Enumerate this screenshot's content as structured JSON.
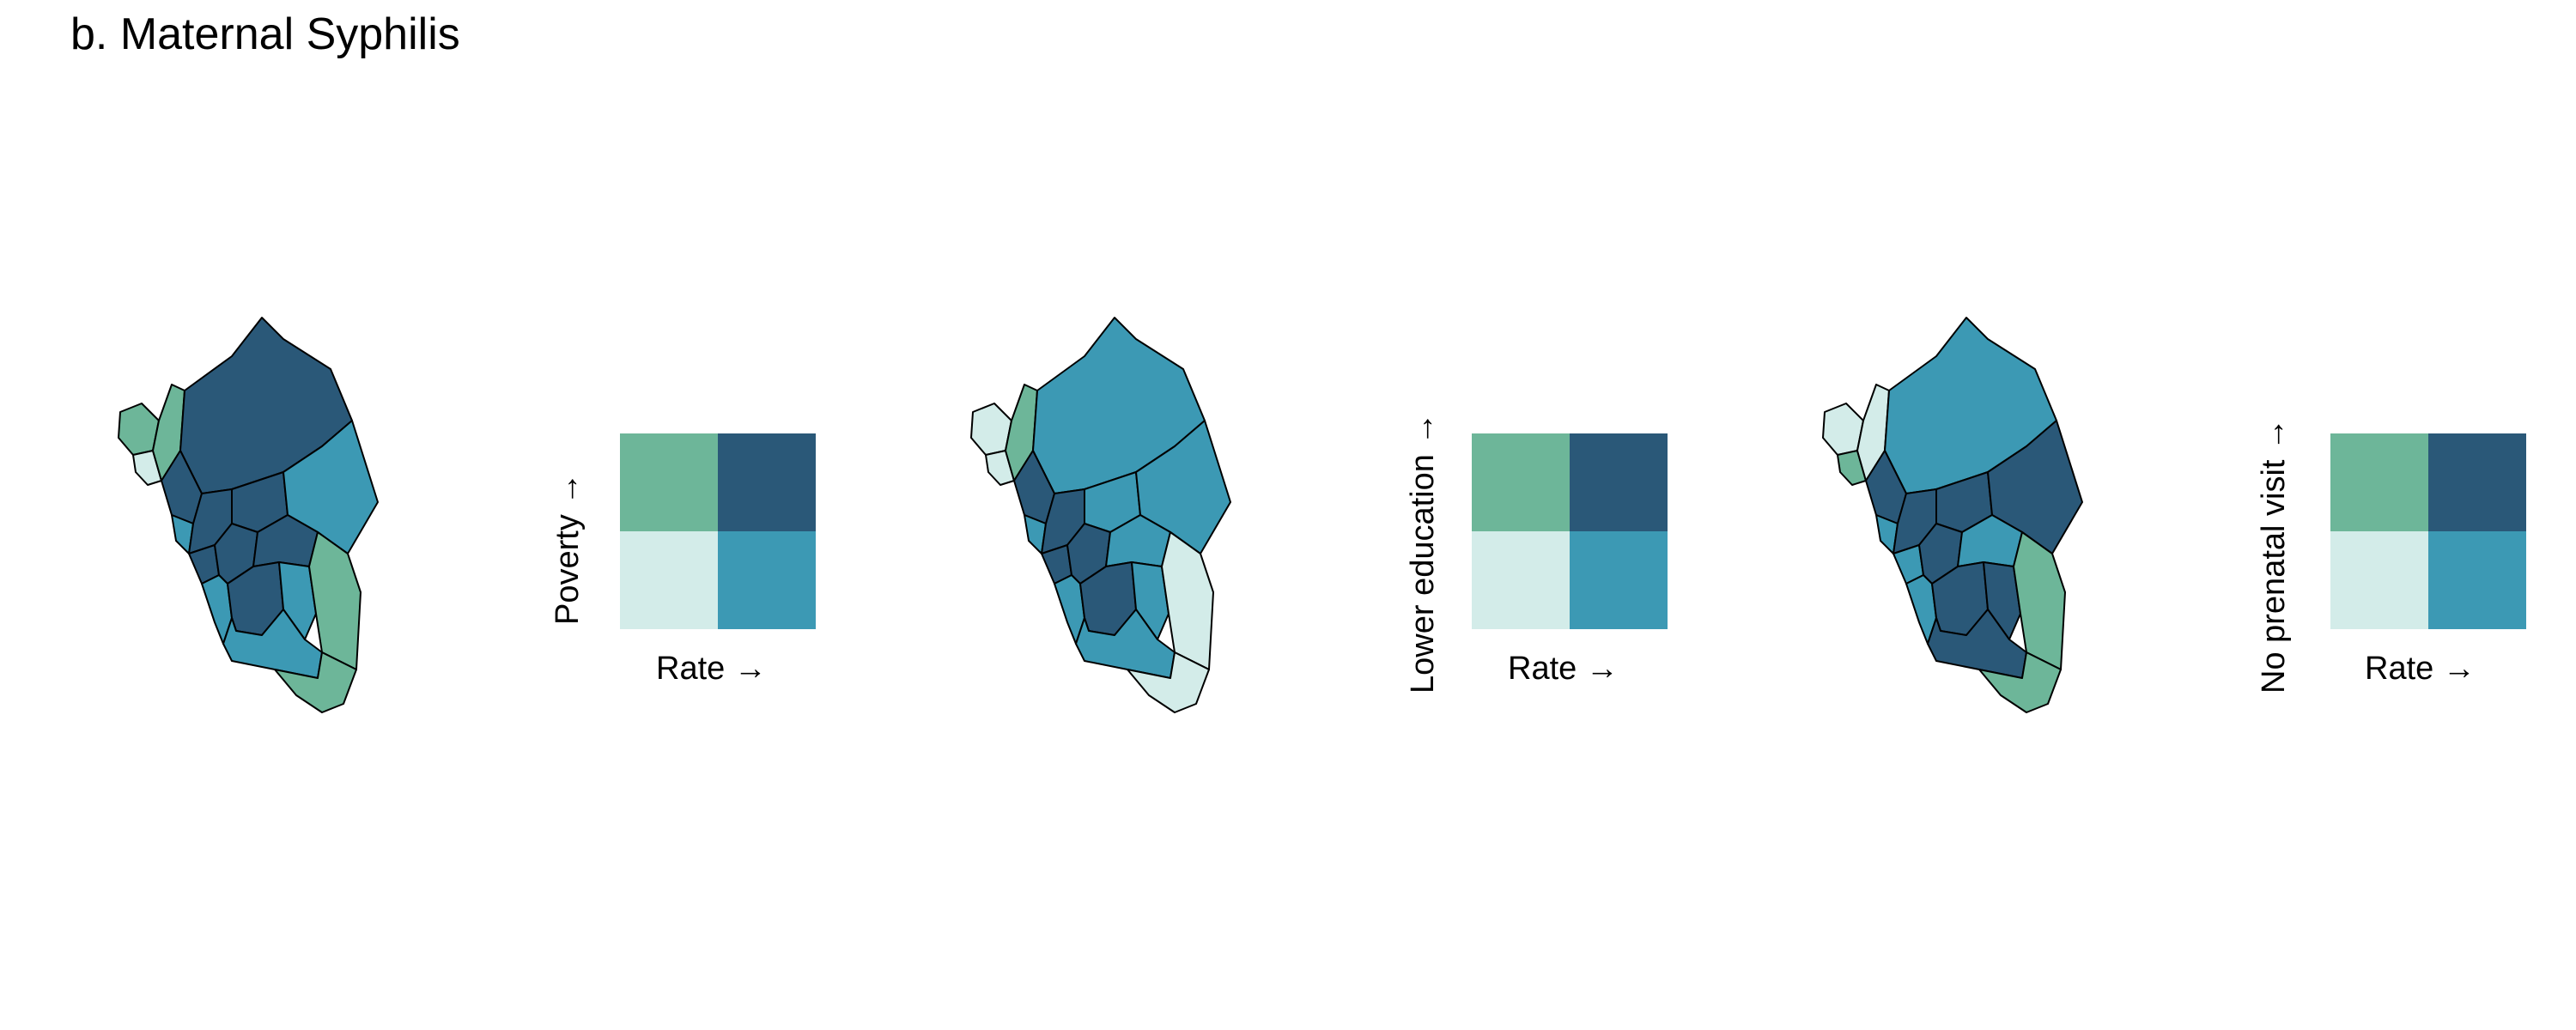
{
  "title": "b. Maternal Syphilis",
  "colors": {
    "low_low": "#d3ece9",
    "low_rate_high_var": "#6db699",
    "high_rate_low_var": "#3c99b4",
    "high_high": "#2a5878",
    "outline": "#000000"
  },
  "panels": [
    {
      "id": "poverty",
      "legend": {
        "x_label": "Rate →",
        "y_label": "Poverty →"
      },
      "regions": [
        "low_rate_high_var",
        "low_low",
        "low_rate_high_var",
        "high_high",
        "high_high",
        "high_rate_low_var",
        "high_high",
        "high_high",
        "high_high",
        "high_high",
        "high_rate_low_var",
        "high_high",
        "high_rate_low_var",
        "high_high",
        "high_rate_low_var",
        "low_rate_high_var",
        "high_rate_low_var",
        "low_rate_high_var"
      ]
    },
    {
      "id": "education",
      "legend": {
        "x_label": "Rate →",
        "y_label": "Lower education →"
      },
      "regions": [
        "low_low",
        "low_low",
        "low_rate_high_var",
        "high_rate_low_var",
        "high_high",
        "high_rate_low_var",
        "high_high",
        "high_rate_low_var",
        "high_high",
        "high_high",
        "high_rate_low_var",
        "high_rate_low_var",
        "high_rate_low_var",
        "high_high",
        "high_rate_low_var",
        "low_low",
        "high_rate_low_var",
        "low_low"
      ]
    },
    {
      "id": "prenatal",
      "legend": {
        "x_label": "Rate →",
        "y_label": "No prenatal visit →"
      },
      "regions": [
        "low_low",
        "low_rate_high_var",
        "low_low",
        "high_rate_low_var",
        "high_high",
        "high_rate_low_var",
        "high_high",
        "high_high",
        "high_rate_low_var",
        "high_high",
        "high_high",
        "high_rate_low_var",
        "high_rate_low_var",
        "high_high",
        "high_high",
        "low_rate_high_var",
        "high_high",
        "low_rate_high_var"
      ]
    }
  ]
}
